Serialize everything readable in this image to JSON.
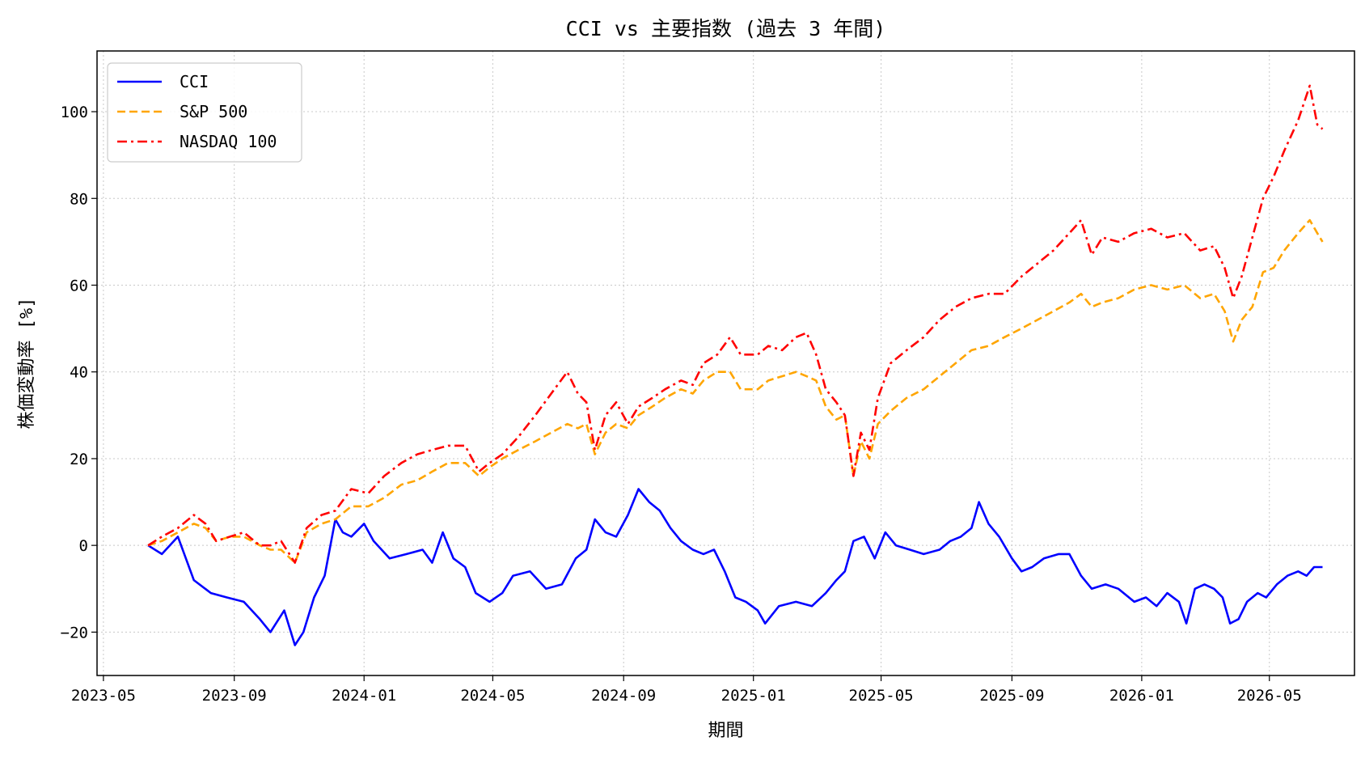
{
  "chart_data": {
    "type": "line",
    "title": "CCI vs 主要指数 (過去 3 年間)",
    "xlabel": "期間",
    "ylabel": "株価変動率 [%]",
    "x_range": [
      "2023-04-25",
      "2026-07-20"
    ],
    "ylim": [
      -30,
      114
    ],
    "x_ticks": [
      "2023-05",
      "2023-09",
      "2024-01",
      "2024-05",
      "2024-09",
      "2025-01",
      "2025-05",
      "2025-09",
      "2026-01",
      "2026-05"
    ],
    "y_ticks": [
      -20,
      0,
      20,
      40,
      60,
      80,
      100
    ],
    "grid": true,
    "legend_position": "top-left",
    "series": [
      {
        "name": "CCI",
        "color": "#0000ff",
        "dash": "solid",
        "points": [
          [
            "2023-06-12",
            0
          ],
          [
            "2023-06-25",
            -2
          ],
          [
            "2023-07-10",
            2
          ],
          [
            "2023-07-25",
            -8
          ],
          [
            "2023-08-10",
            -11
          ],
          [
            "2023-08-25",
            -12
          ],
          [
            "2023-09-10",
            -13
          ],
          [
            "2023-09-25",
            -17
          ],
          [
            "2023-10-05",
            -20
          ],
          [
            "2023-10-18",
            -15
          ],
          [
            "2023-10-28",
            -23
          ],
          [
            "2023-11-05",
            -20
          ],
          [
            "2023-11-15",
            -12
          ],
          [
            "2023-11-25",
            -7
          ],
          [
            "2023-12-05",
            6
          ],
          [
            "2023-12-12",
            3
          ],
          [
            "2023-12-20",
            2
          ],
          [
            "2024-01-01",
            5
          ],
          [
            "2024-01-10",
            1
          ],
          [
            "2024-01-25",
            -3
          ],
          [
            "2024-02-10",
            -2
          ],
          [
            "2024-02-25",
            -1
          ],
          [
            "2024-03-05",
            -4
          ],
          [
            "2024-03-15",
            3
          ],
          [
            "2024-03-25",
            -3
          ],
          [
            "2024-04-05",
            -5
          ],
          [
            "2024-04-15",
            -11
          ],
          [
            "2024-04-28",
            -13
          ],
          [
            "2024-05-10",
            -11
          ],
          [
            "2024-05-20",
            -7
          ],
          [
            "2024-06-05",
            -6
          ],
          [
            "2024-06-20",
            -10
          ],
          [
            "2024-07-05",
            -9
          ],
          [
            "2024-07-18",
            -3
          ],
          [
            "2024-07-28",
            -1
          ],
          [
            "2024-08-05",
            6
          ],
          [
            "2024-08-15",
            3
          ],
          [
            "2024-08-25",
            2
          ],
          [
            "2024-09-05",
            7
          ],
          [
            "2024-09-15",
            13
          ],
          [
            "2024-09-25",
            10
          ],
          [
            "2024-10-05",
            8
          ],
          [
            "2024-10-15",
            4
          ],
          [
            "2024-10-25",
            1
          ],
          [
            "2024-11-05",
            -1
          ],
          [
            "2024-11-15",
            -2
          ],
          [
            "2024-11-25",
            -1
          ],
          [
            "2024-12-05",
            -6
          ],
          [
            "2024-12-15",
            -12
          ],
          [
            "2024-12-25",
            -13
          ],
          [
            "2025-01-05",
            -15
          ],
          [
            "2025-01-12",
            -18
          ],
          [
            "2025-01-25",
            -14
          ],
          [
            "2025-02-10",
            -13
          ],
          [
            "2025-02-25",
            -14
          ],
          [
            "2025-03-10",
            -11
          ],
          [
            "2025-03-20",
            -8
          ],
          [
            "2025-03-28",
            -6
          ],
          [
            "2025-04-05",
            1
          ],
          [
            "2025-04-15",
            2
          ],
          [
            "2025-04-25",
            -3
          ],
          [
            "2025-05-05",
            3
          ],
          [
            "2025-05-15",
            0
          ],
          [
            "2025-05-28",
            -1
          ],
          [
            "2025-06-10",
            -2
          ],
          [
            "2025-06-25",
            -1
          ],
          [
            "2025-07-05",
            1
          ],
          [
            "2025-07-15",
            2
          ],
          [
            "2025-07-25",
            4
          ],
          [
            "2025-08-01",
            10
          ],
          [
            "2025-08-10",
            5
          ],
          [
            "2025-08-20",
            2
          ],
          [
            "2025-09-01",
            -3
          ],
          [
            "2025-09-10",
            -6
          ],
          [
            "2025-09-20",
            -5
          ],
          [
            "2025-10-01",
            -3
          ],
          [
            "2025-10-15",
            -2
          ],
          [
            "2025-10-25",
            -2
          ],
          [
            "2025-11-05",
            -7
          ],
          [
            "2025-11-15",
            -10
          ],
          [
            "2025-11-28",
            -9
          ],
          [
            "2025-12-10",
            -10
          ],
          [
            "2025-12-25",
            -13
          ],
          [
            "2026-01-05",
            -12
          ],
          [
            "2026-01-15",
            -14
          ],
          [
            "2026-01-25",
            -11
          ],
          [
            "2026-02-05",
            -13
          ],
          [
            "2026-02-12",
            -18
          ],
          [
            "2026-02-20",
            -10
          ],
          [
            "2026-03-01",
            -9
          ],
          [
            "2026-03-10",
            -10
          ],
          [
            "2026-03-18",
            -12
          ],
          [
            "2026-03-25",
            -18
          ],
          [
            "2026-04-02",
            -17
          ],
          [
            "2026-04-10",
            -13
          ],
          [
            "2026-04-20",
            -11
          ],
          [
            "2026-04-28",
            -12
          ],
          [
            "2026-05-08",
            -9
          ],
          [
            "2026-05-18",
            -7
          ],
          [
            "2026-05-28",
            -6
          ],
          [
            "2026-06-05",
            -7
          ],
          [
            "2026-06-12",
            -5
          ],
          [
            "2026-06-20",
            -5
          ]
        ]
      },
      {
        "name": "S&P 500",
        "color": "#ffa500",
        "dash": "dashed",
        "points": [
          [
            "2023-06-12",
            0
          ],
          [
            "2023-06-25",
            1
          ],
          [
            "2023-07-10",
            3
          ],
          [
            "2023-07-25",
            5
          ],
          [
            "2023-08-05",
            4
          ],
          [
            "2023-08-15",
            1
          ],
          [
            "2023-08-28",
            2
          ],
          [
            "2023-09-10",
            2
          ],
          [
            "2023-09-25",
            0
          ],
          [
            "2023-10-05",
            -1
          ],
          [
            "2023-10-15",
            -1
          ],
          [
            "2023-10-28",
            -4
          ],
          [
            "2023-11-08",
            3
          ],
          [
            "2023-11-22",
            5
          ],
          [
            "2023-12-05",
            6
          ],
          [
            "2023-12-20",
            9
          ],
          [
            "2024-01-05",
            9
          ],
          [
            "2024-01-20",
            11
          ],
          [
            "2024-02-05",
            14
          ],
          [
            "2024-02-20",
            15
          ],
          [
            "2024-03-05",
            17
          ],
          [
            "2024-03-20",
            19
          ],
          [
            "2024-04-05",
            19
          ],
          [
            "2024-04-18",
            16
          ],
          [
            "2024-04-28",
            18
          ],
          [
            "2024-05-10",
            20
          ],
          [
            "2024-05-25",
            22
          ],
          [
            "2024-06-10",
            24
          ],
          [
            "2024-06-25",
            26
          ],
          [
            "2024-07-10",
            28
          ],
          [
            "2024-07-20",
            27
          ],
          [
            "2024-07-28",
            28
          ],
          [
            "2024-08-05",
            21
          ],
          [
            "2024-08-15",
            26
          ],
          [
            "2024-08-25",
            28
          ],
          [
            "2024-09-05",
            27
          ],
          [
            "2024-09-15",
            30
          ],
          [
            "2024-09-28",
            32
          ],
          [
            "2024-10-10",
            34
          ],
          [
            "2024-10-25",
            36
          ],
          [
            "2024-11-05",
            35
          ],
          [
            "2024-11-15",
            38
          ],
          [
            "2024-11-28",
            40
          ],
          [
            "2024-12-10",
            40
          ],
          [
            "2024-12-20",
            36
          ],
          [
            "2025-01-05",
            36
          ],
          [
            "2025-01-15",
            38
          ],
          [
            "2025-01-28",
            39
          ],
          [
            "2025-02-10",
            40
          ],
          [
            "2025-02-20",
            39
          ],
          [
            "2025-03-01",
            38
          ],
          [
            "2025-03-10",
            32
          ],
          [
            "2025-03-20",
            29
          ],
          [
            "2025-03-28",
            30
          ],
          [
            "2025-04-05",
            16
          ],
          [
            "2025-04-12",
            24
          ],
          [
            "2025-04-20",
            20
          ],
          [
            "2025-04-28",
            28
          ],
          [
            "2025-05-10",
            31
          ],
          [
            "2025-05-25",
            34
          ],
          [
            "2025-06-10",
            36
          ],
          [
            "2025-06-25",
            39
          ],
          [
            "2025-07-10",
            42
          ],
          [
            "2025-07-25",
            45
          ],
          [
            "2025-08-10",
            46
          ],
          [
            "2025-08-25",
            48
          ],
          [
            "2025-09-10",
            50
          ],
          [
            "2025-09-25",
            52
          ],
          [
            "2025-10-10",
            54
          ],
          [
            "2025-10-25",
            56
          ],
          [
            "2025-11-05",
            58
          ],
          [
            "2025-11-15",
            55
          ],
          [
            "2025-11-25",
            56
          ],
          [
            "2025-12-10",
            57
          ],
          [
            "2025-12-25",
            59
          ],
          [
            "2026-01-10",
            60
          ],
          [
            "2026-01-25",
            59
          ],
          [
            "2026-02-10",
            60
          ],
          [
            "2026-02-25",
            57
          ],
          [
            "2026-03-10",
            58
          ],
          [
            "2026-03-20",
            54
          ],
          [
            "2026-03-28",
            47
          ],
          [
            "2026-04-05",
            52
          ],
          [
            "2026-04-15",
            55
          ],
          [
            "2026-04-25",
            63
          ],
          [
            "2026-05-05",
            64
          ],
          [
            "2026-05-15",
            68
          ],
          [
            "2026-05-28",
            72
          ],
          [
            "2026-06-08",
            75
          ],
          [
            "2026-06-15",
            72
          ],
          [
            "2026-06-20",
            70
          ]
        ]
      },
      {
        "name": "NASDAQ 100",
        "color": "#ff0000",
        "dash": "dashdot",
        "points": [
          [
            "2023-06-12",
            0
          ],
          [
            "2023-06-25",
            2
          ],
          [
            "2023-07-10",
            4
          ],
          [
            "2023-07-25",
            7
          ],
          [
            "2023-08-05",
            5
          ],
          [
            "2023-08-15",
            1
          ],
          [
            "2023-08-28",
            2
          ],
          [
            "2023-09-10",
            3
          ],
          [
            "2023-09-25",
            0
          ],
          [
            "2023-10-05",
            0
          ],
          [
            "2023-10-15",
            1
          ],
          [
            "2023-10-28",
            -4
          ],
          [
            "2023-11-08",
            4
          ],
          [
            "2023-11-22",
            7
          ],
          [
            "2023-12-05",
            8
          ],
          [
            "2023-12-20",
            13
          ],
          [
            "2024-01-05",
            12
          ],
          [
            "2024-01-20",
            16
          ],
          [
            "2024-02-05",
            19
          ],
          [
            "2024-02-20",
            21
          ],
          [
            "2024-03-05",
            22
          ],
          [
            "2024-03-20",
            23
          ],
          [
            "2024-04-05",
            23
          ],
          [
            "2024-04-18",
            17
          ],
          [
            "2024-04-28",
            19
          ],
          [
            "2024-05-10",
            21
          ],
          [
            "2024-05-25",
            25
          ],
          [
            "2024-06-10",
            30
          ],
          [
            "2024-06-25",
            35
          ],
          [
            "2024-07-10",
            40
          ],
          [
            "2024-07-20",
            35
          ],
          [
            "2024-07-28",
            33
          ],
          [
            "2024-08-05",
            22
          ],
          [
            "2024-08-15",
            30
          ],
          [
            "2024-08-25",
            33
          ],
          [
            "2024-09-05",
            28
          ],
          [
            "2024-09-15",
            32
          ],
          [
            "2024-09-28",
            34
          ],
          [
            "2024-10-10",
            36
          ],
          [
            "2024-10-25",
            38
          ],
          [
            "2024-11-05",
            37
          ],
          [
            "2024-11-15",
            42
          ],
          [
            "2024-11-28",
            44
          ],
          [
            "2024-12-10",
            48
          ],
          [
            "2024-12-20",
            44
          ],
          [
            "2025-01-05",
            44
          ],
          [
            "2025-01-15",
            46
          ],
          [
            "2025-01-28",
            45
          ],
          [
            "2025-02-10",
            48
          ],
          [
            "2025-02-20",
            49
          ],
          [
            "2025-03-01",
            44
          ],
          [
            "2025-03-10",
            36
          ],
          [
            "2025-03-20",
            33
          ],
          [
            "2025-03-28",
            30
          ],
          [
            "2025-04-05",
            16
          ],
          [
            "2025-04-12",
            26
          ],
          [
            "2025-04-20",
            22
          ],
          [
            "2025-04-28",
            34
          ],
          [
            "2025-05-10",
            42
          ],
          [
            "2025-05-25",
            45
          ],
          [
            "2025-06-10",
            48
          ],
          [
            "2025-06-25",
            52
          ],
          [
            "2025-07-10",
            55
          ],
          [
            "2025-07-25",
            57
          ],
          [
            "2025-08-10",
            58
          ],
          [
            "2025-08-25",
            58
          ],
          [
            "2025-09-10",
            62
          ],
          [
            "2025-09-25",
            65
          ],
          [
            "2025-10-10",
            68
          ],
          [
            "2025-10-25",
            72
          ],
          [
            "2025-11-05",
            75
          ],
          [
            "2025-11-15",
            67
          ],
          [
            "2025-11-25",
            71
          ],
          [
            "2025-12-10",
            70
          ],
          [
            "2025-12-25",
            72
          ],
          [
            "2026-01-10",
            73
          ],
          [
            "2026-01-25",
            71
          ],
          [
            "2026-02-10",
            72
          ],
          [
            "2026-02-25",
            68
          ],
          [
            "2026-03-10",
            69
          ],
          [
            "2026-03-20",
            64
          ],
          [
            "2026-03-28",
            57
          ],
          [
            "2026-04-05",
            62
          ],
          [
            "2026-04-15",
            71
          ],
          [
            "2026-04-25",
            80
          ],
          [
            "2026-05-05",
            85
          ],
          [
            "2026-05-15",
            91
          ],
          [
            "2026-05-28",
            98
          ],
          [
            "2026-06-08",
            106
          ],
          [
            "2026-06-15",
            97
          ],
          [
            "2026-06-20",
            96
          ]
        ]
      }
    ]
  }
}
